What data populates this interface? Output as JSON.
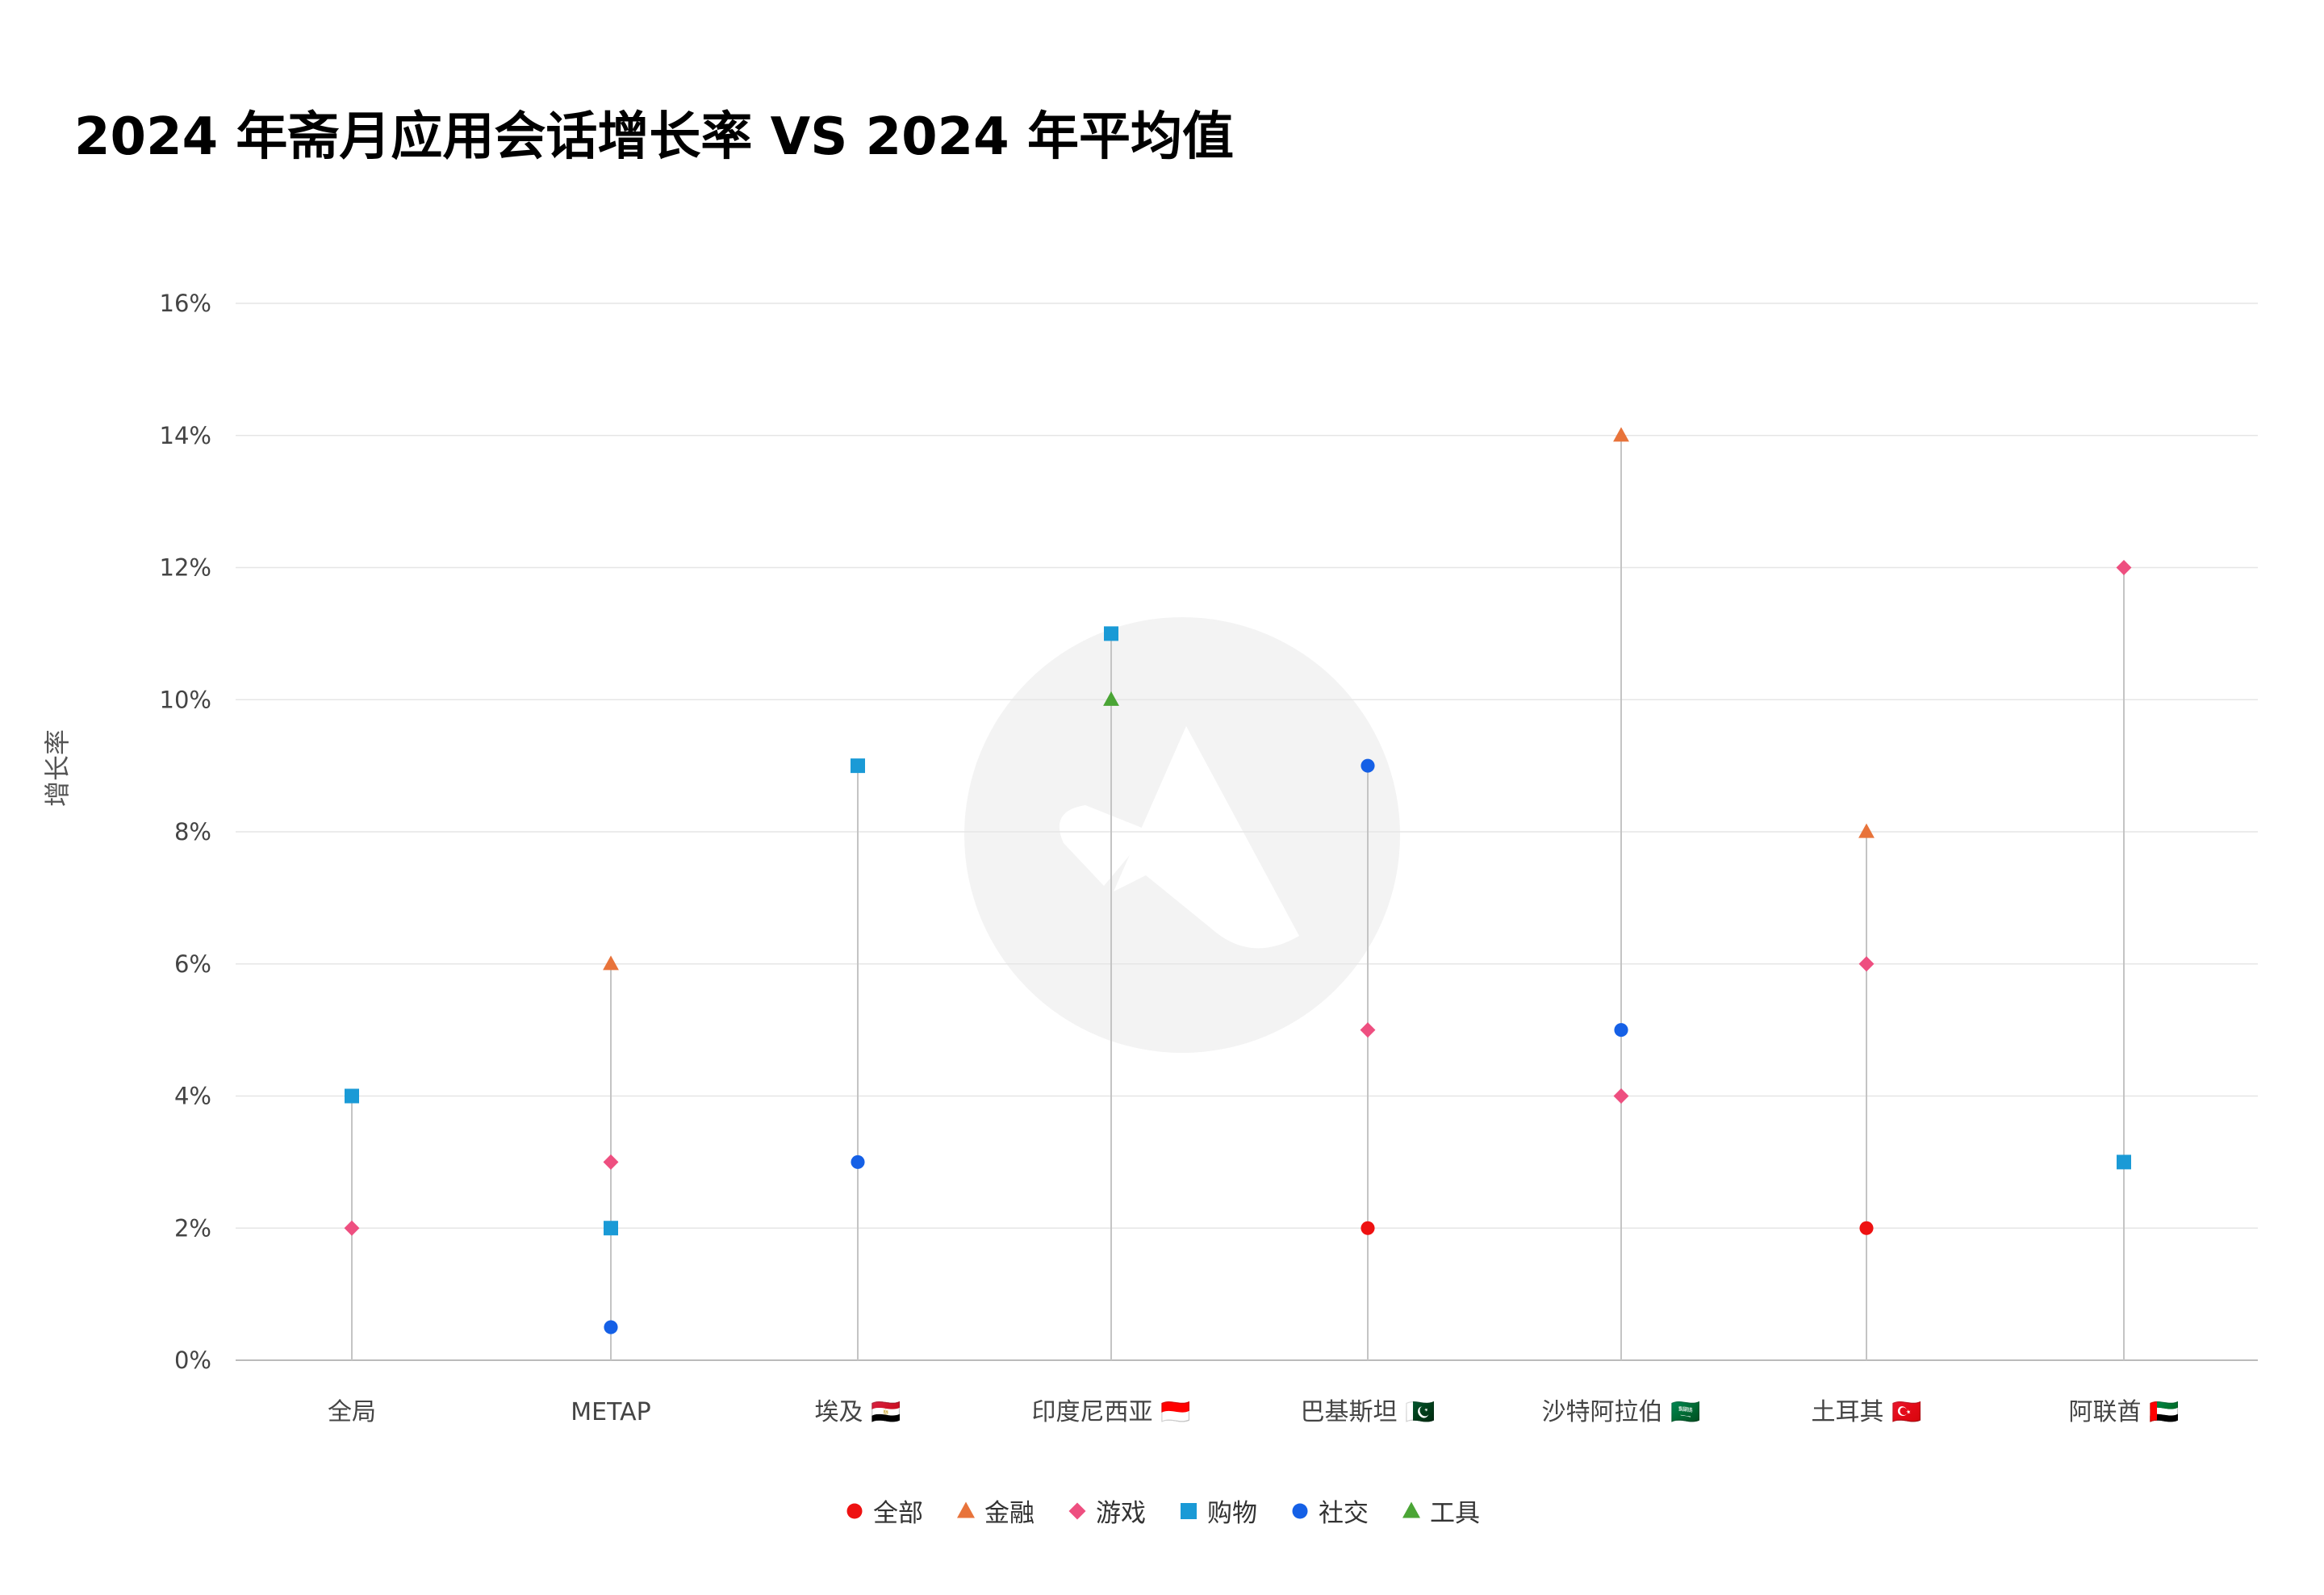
{
  "title": "2024 年斋月应用会话增长率 VS 2024 年平均值",
  "chart_data": {
    "type": "scatter",
    "title": "2024 年斋月应用会话增长率 VS 2024 年平均值",
    "ylabel": "增长率",
    "xlabel": "",
    "ylim": [
      0,
      16
    ],
    "y_ticks": [
      "0%",
      "2%",
      "4%",
      "6%",
      "8%",
      "10%",
      "12%",
      "14%",
      "16%"
    ],
    "grid": true,
    "legend_position": "bottom",
    "categories": [
      "全局",
      "METAP",
      "埃及 🇪🇬",
      "印度尼西亚 🇮🇩",
      "巴基斯坦 🇵🇰",
      "沙特阿拉伯 🇸🇦",
      "土耳其 🇹🇷",
      "阿联酋 🇦🇪"
    ],
    "series": [
      {
        "name": "全部",
        "marker": "circle",
        "color": "#ee1111",
        "values": [
          null,
          null,
          null,
          null,
          2,
          null,
          2,
          null
        ]
      },
      {
        "name": "金融",
        "marker": "triangle",
        "color": "#e8733a",
        "values": [
          null,
          6,
          null,
          null,
          null,
          14,
          8,
          null
        ]
      },
      {
        "name": "游戏",
        "marker": "diamond",
        "color": "#ee4f80",
        "values": [
          2,
          3,
          null,
          null,
          5,
          4,
          6,
          12
        ]
      },
      {
        "name": "购物",
        "marker": "square",
        "color": "#1a9ad6",
        "values": [
          4,
          2,
          9,
          11,
          null,
          null,
          null,
          3
        ]
      },
      {
        "name": "社交",
        "marker": "circle",
        "color": "#1560e6",
        "values": [
          null,
          0.5,
          3,
          null,
          9,
          5,
          null,
          null
        ]
      },
      {
        "name": "工具",
        "marker": "triangle",
        "color": "#4aa535",
        "values": [
          null,
          null,
          null,
          10,
          null,
          null,
          null,
          null
        ]
      }
    ]
  }
}
